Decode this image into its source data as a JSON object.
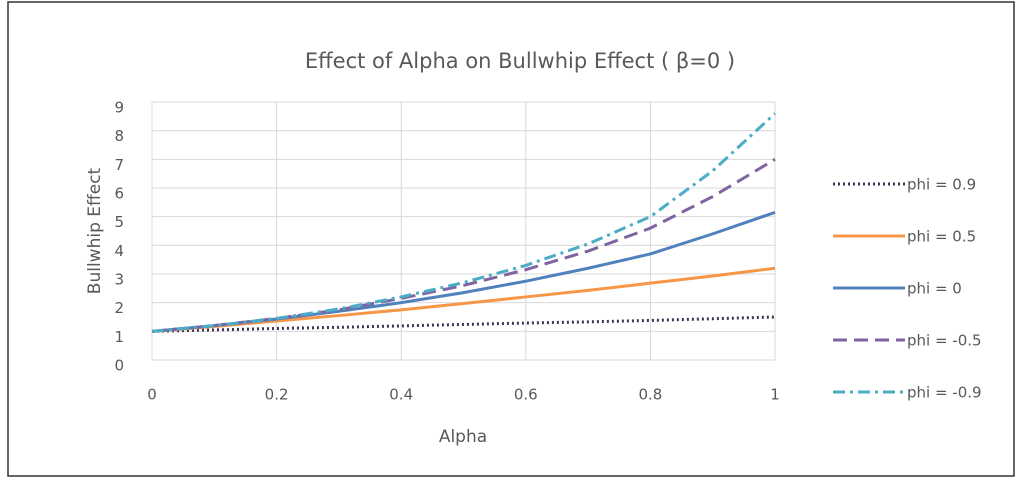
{
  "chart_data": {
    "type": "line",
    "title": "Effect of Alpha on Bullwhip Effect ( β=0 )",
    "x_label": "Alpha",
    "y_label": "Bullwhip Effect",
    "x": [
      0,
      0.1,
      0.2,
      0.3,
      0.4,
      0.5,
      0.6,
      0.7,
      0.8,
      0.9,
      1
    ],
    "series": [
      {
        "name": "phi = 0.9",
        "color": "#403152",
        "dash": "dotted",
        "values": [
          1,
          1.05,
          1.1,
          1.14,
          1.19,
          1.24,
          1.29,
          1.33,
          1.38,
          1.44,
          1.5
        ]
      },
      {
        "name": "phi = 0.5",
        "color": "#f79646",
        "dash": "solid",
        "values": [
          1,
          1.17,
          1.36,
          1.55,
          1.75,
          1.97,
          2.2,
          2.43,
          2.68,
          2.93,
          3.2
        ]
      },
      {
        "name": "phi = 0",
        "color": "#4f81bd",
        "dash": "solid",
        "values": [
          1,
          1.2,
          1.43,
          1.7,
          2.0,
          2.35,
          2.75,
          3.2,
          3.7,
          4.4,
          5.15
        ]
      },
      {
        "name": "phi = -0.5",
        "color": "#8064a2",
        "dash": "dashed",
        "values": [
          1,
          1.2,
          1.45,
          1.75,
          2.15,
          2.6,
          3.15,
          3.8,
          4.6,
          5.7,
          7
        ]
      },
      {
        "name": "phi = -0.9",
        "color": "#4bacc6",
        "dash": "dashdot",
        "values": [
          1,
          1.2,
          1.45,
          1.78,
          2.2,
          2.7,
          3.3,
          4.05,
          5.0,
          6.6,
          8.6
        ]
      }
    ],
    "xlim": [
      0,
      1
    ],
    "xticks": [
      0,
      0.2,
      0.4,
      0.6,
      0.8,
      1
    ],
    "ylim": [
      0,
      9
    ],
    "yticks": [
      0,
      1,
      2,
      3,
      4,
      5,
      6,
      7,
      8,
      9
    ],
    "grid": true,
    "legend": "right"
  }
}
